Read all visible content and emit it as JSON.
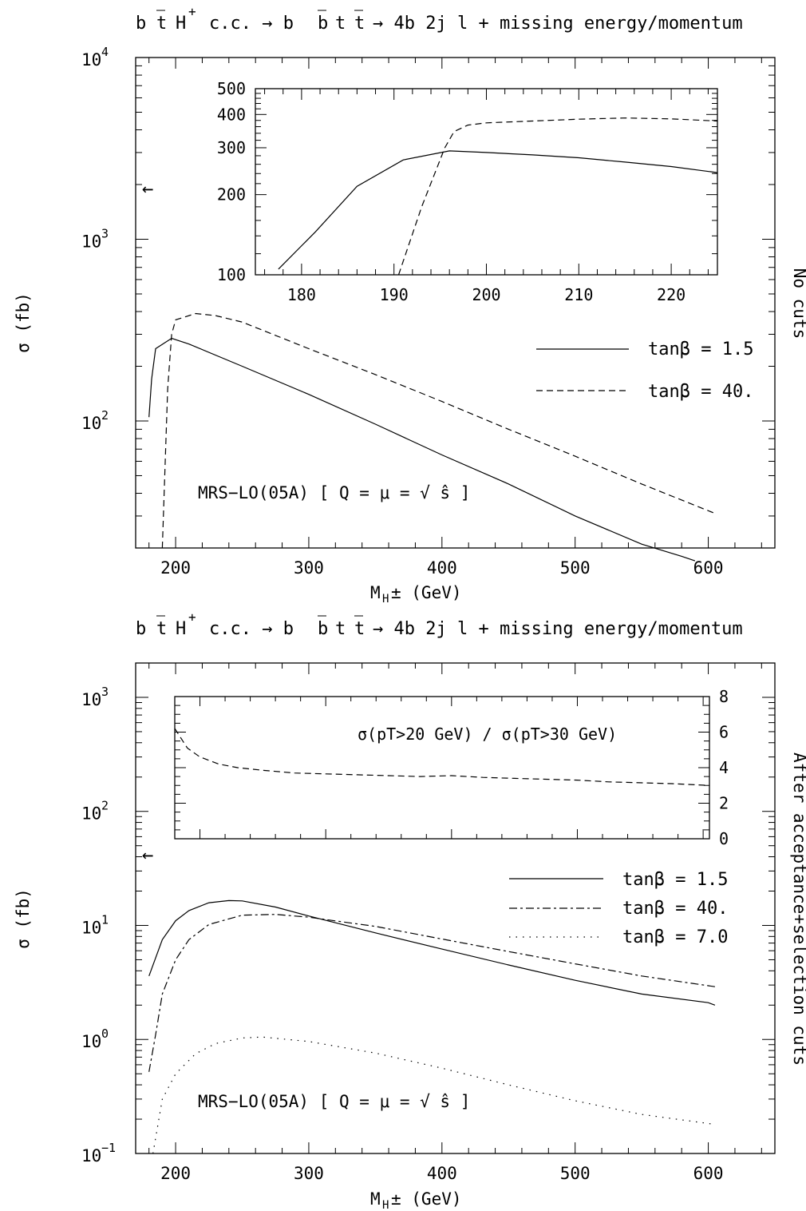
{
  "chart_data": [
    {
      "type": "line",
      "panel": "top",
      "title": "b t̄ H⁺ + c.c. → b b̄ t t̄ → 4b 2j l + missing energy/momentum",
      "title_parts": {
        "a": "b",
        "b": "t",
        "c": "H",
        "d": "+",
        "e": "c.c. → b",
        "f": "b",
        "g": "t",
        "h": "t",
        "i": "→ 4b 2j l + missing energy/momentum"
      },
      "xlabel": "M",
      "xlabel_sub": "H",
      "xlabel_rest": "±  (GeV)",
      "ylabel": "σ (fb)",
      "side_label": "No cuts",
      "annotation": "MRS−LO(05A) [ Q = μ = √ ŝ ]",
      "arrow": "←",
      "xlim": [
        170,
        650
      ],
      "ylim": [
        20,
        10000
      ],
      "yscale": "log",
      "x_ticks": [
        "200",
        "300",
        "400",
        "500",
        "600"
      ],
      "y_ticks": [
        "10",
        "10",
        "10"
      ],
      "y_tick_exponents": [
        "2",
        "3",
        "4"
      ],
      "series": [
        {
          "name": "tanβ = 1.5",
          "style": "solid",
          "x": [
            180,
            182,
            185,
            197,
            210,
            250,
            300,
            350,
            400,
            450,
            500,
            550,
            580,
            590
          ],
          "y": [
            105,
            170,
            250,
            285,
            265,
            200,
            140,
            96,
            65,
            45,
            30,
            21,
            18,
            17
          ]
        },
        {
          "name": "tanβ = 40.",
          "style": "dashed",
          "x": [
            190,
            194,
            197,
            200,
            215,
            230,
            250,
            300,
            350,
            400,
            450,
            500,
            550,
            605
          ],
          "y": [
            20,
            150,
            300,
            360,
            390,
            380,
            350,
            250,
            180,
            128,
            90,
            64,
            45,
            31
          ]
        }
      ],
      "inset": {
        "xlim": [
          175,
          225
        ],
        "ylim": [
          100,
          500
        ],
        "yscale": "log",
        "x_ticks": [
          "180",
          "190",
          "200",
          "210",
          "220"
        ],
        "y_ticks": [
          "100",
          "200",
          "300",
          "400",
          "500"
        ],
        "series": [
          {
            "name": "tanβ = 1.5",
            "style": "solid",
            "x": [
              177.5,
              181.5,
              186,
              191,
              196,
              200,
              205,
              210,
              215,
              220,
              225
            ],
            "y": [
              105,
              145,
              215,
              270,
              292,
              288,
              282,
              275,
              265,
              255,
              242
            ]
          },
          {
            "name": "tanβ = 40.",
            "style": "dashed",
            "x": [
              190.5,
              193,
              195.5,
              196.5,
              198,
              200,
              205,
              210,
              215,
              220,
              225
            ],
            "y": [
              100,
              180,
              300,
              345,
              365,
              372,
              378,
              384,
              388,
              385,
              378
            ]
          }
        ]
      }
    },
    {
      "type": "line",
      "panel": "bottom",
      "title": "b t̄ H⁺ + c.c. → b b̄ t t̄ → 4b 2j l + missing energy/momentum",
      "title_parts": {
        "a": "b",
        "b": "t",
        "c": "H",
        "d": "+",
        "e": "c.c. → b",
        "f": "b",
        "g": "t",
        "h": "t",
        "i": "→ 4b 2j l + missing energy/momentum"
      },
      "xlabel": "M",
      "xlabel_sub": "H",
      "xlabel_rest": "±  (GeV)",
      "ylabel": "σ (fb)",
      "side_label": "After acceptance+selection cuts",
      "annotation": "MRS−LO(05A) [ Q = μ = √ ŝ ]",
      "arrow": "←",
      "xlim": [
        170,
        650
      ],
      "ylim": [
        0.1,
        2000
      ],
      "yscale": "log",
      "x_ticks": [
        "200",
        "300",
        "400",
        "500",
        "600"
      ],
      "y_ticks": [
        "10",
        "10",
        "10",
        "10",
        "10"
      ],
      "y_tick_exponents": [
        "−1",
        "0",
        "1",
        "2",
        "3"
      ],
      "series": [
        {
          "name": "tanβ = 1.5",
          "style": "solid",
          "x": [
            180,
            190,
            200,
            210,
            225,
            240,
            250,
            275,
            300,
            350,
            400,
            450,
            500,
            550,
            600,
            605
          ],
          "y": [
            3.6,
            7.5,
            11,
            13.5,
            15.8,
            16.5,
            16.4,
            14.5,
            12.1,
            8.6,
            6.2,
            4.5,
            3.3,
            2.5,
            2.1,
            2.0
          ]
        },
        {
          "name": "tanβ = 40.",
          "style": "dashed",
          "x": [
            180,
            185,
            190,
            200,
            210,
            225,
            250,
            275,
            300,
            350,
            400,
            450,
            500,
            550,
            605
          ],
          "y": [
            0.52,
            1.1,
            2.5,
            5.0,
            7.5,
            10.2,
            12.3,
            12.5,
            11.8,
            9.8,
            7.6,
            5.9,
            4.6,
            3.6,
            2.9
          ]
        },
        {
          "name": "tanβ = 7.0",
          "style": "dotted",
          "x": [
            183,
            190,
            200,
            215,
            230,
            250,
            265,
            300,
            350,
            400,
            450,
            500,
            550,
            605
          ],
          "y": [
            0.1,
            0.3,
            0.5,
            0.75,
            0.92,
            1.03,
            1.05,
            0.96,
            0.76,
            0.56,
            0.4,
            0.29,
            0.22,
            0.18
          ]
        }
      ],
      "inset": {
        "annotation": "σ(pT>20 GeV) / σ(pT>30 GeV)",
        "xlim": [
          180,
          605
        ],
        "ylim": [
          0,
          8
        ],
        "yscale": "linear",
        "y_ticks": [
          "0",
          "2",
          "4",
          "6",
          "8"
        ],
        "series": [
          {
            "name": "ratio",
            "style": "dashed",
            "x": [
              180,
              190,
              200,
              215,
              230,
              250,
              275,
              300,
              325,
              350,
              375,
              400,
              425,
              450,
              475,
              500,
              525,
              550,
              575,
              605
            ],
            "y": [
              6.2,
              5.1,
              4.6,
              4.2,
              4.0,
              3.85,
              3.7,
              3.65,
              3.6,
              3.55,
              3.5,
              3.55,
              3.45,
              3.4,
              3.35,
              3.3,
              3.2,
              3.15,
              3.1,
              3.0
            ]
          }
        ]
      },
      "legend_position": "right"
    }
  ],
  "legend_top": [
    "tanβ = 1.5",
    "tanβ = 40."
  ],
  "legend_bottom": [
    "tanβ = 1.5",
    "tanβ = 40.",
    "tanβ = 7.0"
  ]
}
